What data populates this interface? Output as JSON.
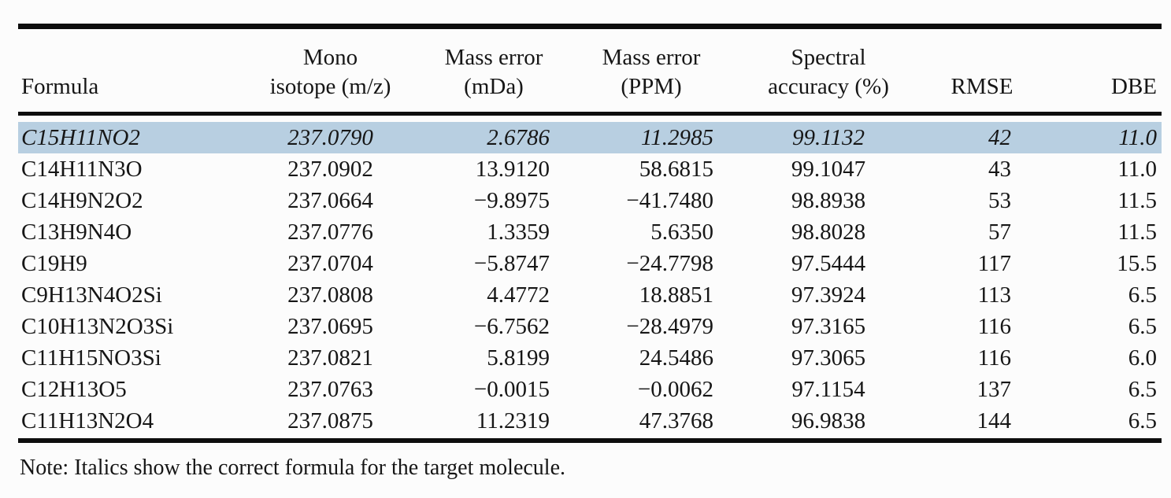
{
  "table": {
    "columns": [
      {
        "key": "formula",
        "label": "Formula",
        "label2": ""
      },
      {
        "key": "mono",
        "label": "Mono",
        "label2": "isotope (m/z)"
      },
      {
        "key": "mda",
        "label": "Mass error",
        "label2": "(mDa)"
      },
      {
        "key": "ppm",
        "label": "Mass error",
        "label2": "(PPM)"
      },
      {
        "key": "spectral",
        "label": "Spectral",
        "label2": "accuracy (%)"
      },
      {
        "key": "rmse",
        "label": "RMSE",
        "label2": ""
      },
      {
        "key": "dbe",
        "label": "DBE",
        "label2": ""
      }
    ],
    "rows": [
      {
        "formula": "C15H11NO2",
        "mono": "237.0790",
        "mda": "2.6786",
        "ppm": "11.2985",
        "spectral": "99.1132",
        "rmse": "42",
        "dbe": "11.0",
        "highlight": true
      },
      {
        "formula": "C14H11N3O",
        "mono": "237.0902",
        "mda": "13.9120",
        "ppm": "58.6815",
        "spectral": "99.1047",
        "rmse": "43",
        "dbe": "11.0",
        "highlight": false
      },
      {
        "formula": "C14H9N2O2",
        "mono": "237.0664",
        "mda": "−9.8975",
        "ppm": "−41.7480",
        "spectral": "98.8938",
        "rmse": "53",
        "dbe": "11.5",
        "highlight": false
      },
      {
        "formula": "C13H9N4O",
        "mono": "237.0776",
        "mda": "1.3359",
        "ppm": "5.6350",
        "spectral": "98.8028",
        "rmse": "57",
        "dbe": "11.5",
        "highlight": false
      },
      {
        "formula": "C19H9",
        "mono": "237.0704",
        "mda": "−5.8747",
        "ppm": "−24.7798",
        "spectral": "97.5444",
        "rmse": "117",
        "dbe": "15.5",
        "highlight": false
      },
      {
        "formula": "C9H13N4O2Si",
        "mono": "237.0808",
        "mda": "4.4772",
        "ppm": "18.8851",
        "spectral": "97.3924",
        "rmse": "113",
        "dbe": "6.5",
        "highlight": false
      },
      {
        "formula": "C10H13N2O3Si",
        "mono": "237.0695",
        "mda": "−6.7562",
        "ppm": "−28.4979",
        "spectral": "97.3165",
        "rmse": "116",
        "dbe": "6.5",
        "highlight": false
      },
      {
        "formula": "C11H15NO3Si",
        "mono": "237.0821",
        "mda": "5.8199",
        "ppm": "24.5486",
        "spectral": "97.3065",
        "rmse": "116",
        "dbe": "6.0",
        "highlight": false
      },
      {
        "formula": "C12H13O5",
        "mono": "237.0763",
        "mda": "−0.0015",
        "ppm": "−0.0062",
        "spectral": "97.1154",
        "rmse": "137",
        "dbe": "6.5",
        "highlight": false
      },
      {
        "formula": "C11H13N2O4",
        "mono": "237.0875",
        "mda": "11.2319",
        "ppm": "47.3768",
        "spectral": "96.9838",
        "rmse": "144",
        "dbe": "6.5",
        "highlight": false
      }
    ],
    "highlight_color": "#b8cfe1",
    "note": "Note: Italics show the correct formula for the target molecule."
  }
}
